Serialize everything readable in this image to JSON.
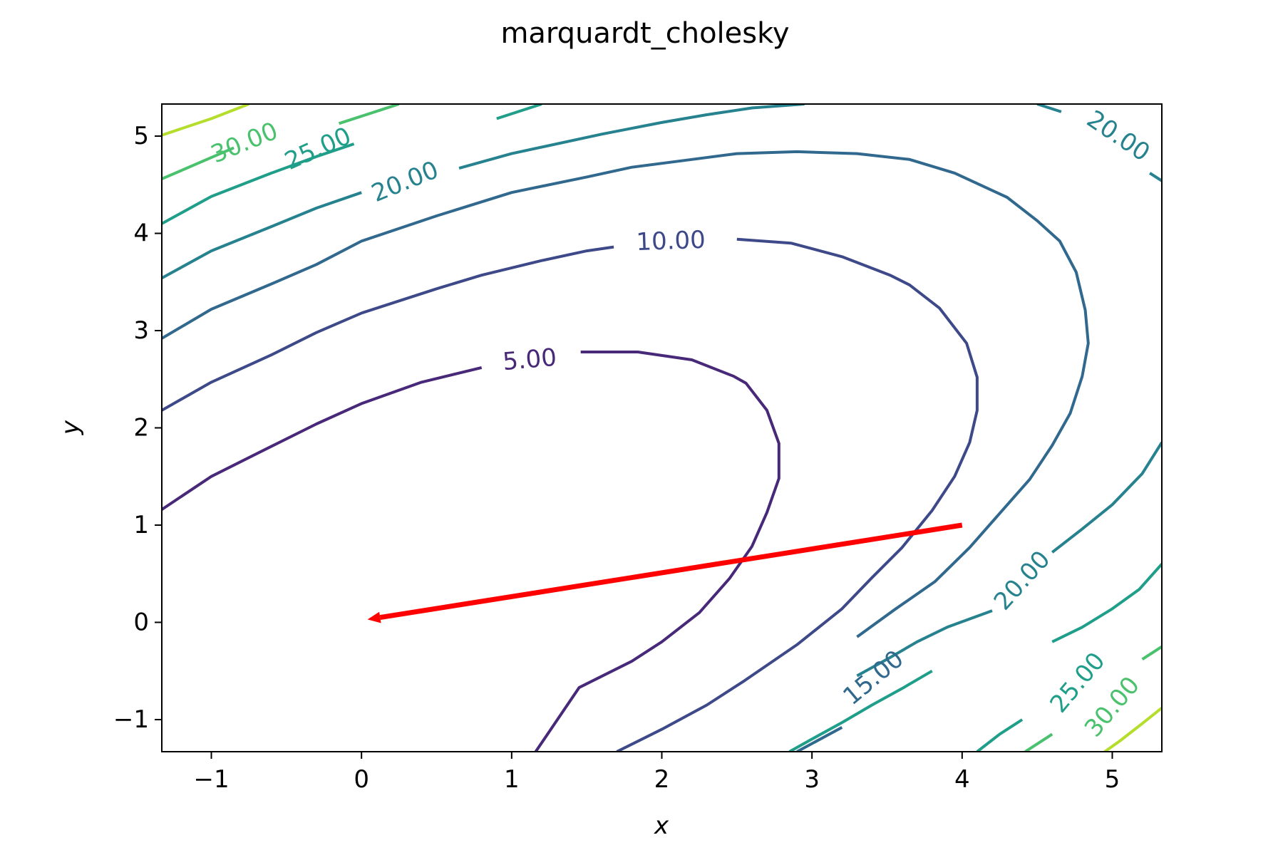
{
  "chart_data": {
    "type": "contour",
    "title": "marquardt_cholesky",
    "xlabel": "x",
    "ylabel": "y",
    "xlim": [
      -1.33,
      5.33
    ],
    "ylim": [
      -1.33,
      5.33
    ],
    "x_ticks": [
      -1,
      0,
      1,
      2,
      3,
      4,
      5
    ],
    "y_ticks": [
      -1,
      0,
      1,
      2,
      3,
      4,
      5
    ],
    "x_tick_labels": [
      "−1",
      "0",
      "1",
      "2",
      "3",
      "4",
      "5"
    ],
    "y_tick_labels": [
      "−1",
      "0",
      "1",
      "2",
      "3",
      "4",
      "5"
    ],
    "grid": false,
    "contours": [
      {
        "level": 5,
        "label": "5.00",
        "color": "#482878",
        "lines": [
          [
            [
              -1.33,
              1.16
            ],
            [
              -1.0,
              1.5
            ],
            [
              -0.6,
              1.81
            ],
            [
              -0.3,
              2.04
            ],
            [
              0.0,
              2.25
            ],
            [
              0.4,
              2.47
            ],
            [
              0.8,
              2.62
            ]
          ],
          [
            [
              1.46,
              2.78
            ],
            [
              1.84,
              2.78
            ],
            [
              2.2,
              2.7
            ],
            [
              2.48,
              2.53
            ],
            [
              2.56,
              2.46
            ],
            [
              2.7,
              2.18
            ],
            [
              2.78,
              1.84
            ],
            [
              2.78,
              1.48
            ],
            [
              2.7,
              1.13
            ],
            [
              2.6,
              0.78
            ],
            [
              2.45,
              0.45
            ],
            [
              2.25,
              0.1
            ],
            [
              2.0,
              -0.2
            ],
            [
              1.8,
              -0.4
            ],
            [
              1.45,
              -0.67
            ],
            [
              1.16,
              -1.33
            ]
          ]
        ]
      },
      {
        "level": 10,
        "label": "10.00",
        "color": "#3e4989",
        "lines": [
          [
            [
              -1.33,
              2.18
            ],
            [
              -1.0,
              2.47
            ],
            [
              -0.6,
              2.75
            ],
            [
              -0.3,
              2.98
            ],
            [
              0.0,
              3.18
            ],
            [
              0.5,
              3.43
            ],
            [
              0.8,
              3.57
            ],
            [
              1.2,
              3.72
            ],
            [
              1.5,
              3.82
            ],
            [
              1.68,
              3.86
            ]
          ],
          [
            [
              2.5,
              3.94
            ],
            [
              2.86,
              3.9
            ],
            [
              3.2,
              3.76
            ],
            [
              3.52,
              3.57
            ],
            [
              3.65,
              3.47
            ],
            [
              3.85,
              3.23
            ],
            [
              4.03,
              2.87
            ],
            [
              4.1,
              2.52
            ],
            [
              4.1,
              2.18
            ],
            [
              4.05,
              1.85
            ],
            [
              3.95,
              1.5
            ],
            [
              3.8,
              1.15
            ],
            [
              3.6,
              0.77
            ],
            [
              3.4,
              0.46
            ],
            [
              3.2,
              0.14
            ],
            [
              2.9,
              -0.23
            ],
            [
              2.55,
              -0.6
            ],
            [
              2.3,
              -0.85
            ],
            [
              2.0,
              -1.1
            ],
            [
              1.7,
              -1.33
            ]
          ]
        ]
      },
      {
        "level": 15,
        "label": "15.00",
        "color": "#31688e",
        "lines": [
          [
            [
              -1.33,
              2.92
            ],
            [
              -1.0,
              3.22
            ],
            [
              -0.6,
              3.48
            ],
            [
              -0.3,
              3.68
            ],
            [
              0.0,
              3.92
            ],
            [
              0.5,
              4.18
            ],
            [
              1.0,
              4.42
            ],
            [
              1.5,
              4.58
            ],
            [
              1.8,
              4.68
            ],
            [
              2.2,
              4.76
            ],
            [
              2.5,
              4.82
            ],
            [
              2.9,
              4.84
            ],
            [
              3.3,
              4.82
            ],
            [
              3.65,
              4.76
            ],
            [
              3.95,
              4.62
            ],
            [
              4.3,
              4.37
            ],
            [
              4.5,
              4.13
            ],
            [
              4.65,
              3.92
            ],
            [
              4.76,
              3.6
            ],
            [
              4.82,
              3.21
            ],
            [
              4.84,
              2.87
            ],
            [
              4.8,
              2.53
            ],
            [
              4.72,
              2.15
            ],
            [
              4.6,
              1.82
            ],
            [
              4.45,
              1.47
            ],
            [
              4.25,
              1.12
            ],
            [
              4.05,
              0.77
            ],
            [
              3.82,
              0.42
            ],
            [
              3.55,
              0.13
            ],
            [
              3.3,
              -0.15
            ]
          ],
          [
            [
              2.9,
              -1.33
            ],
            [
              3.2,
              -1.08
            ]
          ]
        ]
      },
      {
        "level": 20,
        "label": "20.00",
        "color": "#26828e",
        "lines": [
          [
            [
              -1.33,
              3.54
            ],
            [
              -1.0,
              3.82
            ],
            [
              -0.6,
              4.07
            ],
            [
              -0.3,
              4.26
            ],
            [
              0.0,
              4.42
            ]
          ],
          [
            [
              0.65,
              4.67
            ],
            [
              1.0,
              4.82
            ],
            [
              1.6,
              5.02
            ],
            [
              2.0,
              5.14
            ],
            [
              2.3,
              5.22
            ],
            [
              2.6,
              5.29
            ],
            [
              2.95,
              5.33
            ]
          ],
          [
            [
              4.5,
              5.33
            ],
            [
              4.66,
              5.25
            ]
          ],
          [
            [
              5.25,
              4.62
            ],
            [
              5.33,
              4.54
            ]
          ],
          [
            [
              5.33,
              1.85
            ],
            [
              5.2,
              1.53
            ],
            [
              5.0,
              1.21
            ],
            [
              4.8,
              0.96
            ],
            [
              4.6,
              0.72
            ]
          ],
          [
            [
              4.2,
              0.12
            ],
            [
              3.9,
              -0.05
            ],
            [
              3.7,
              -0.2
            ],
            [
              3.5,
              -0.38
            ],
            [
              3.3,
              -0.55
            ]
          ]
        ]
      },
      {
        "level": 25,
        "label": "25.00",
        "color": "#1f9e89",
        "lines": [
          [
            [
              -1.33,
              4.1
            ],
            [
              -1.0,
              4.38
            ],
            [
              -0.6,
              4.62
            ],
            [
              -0.3,
              4.79
            ],
            [
              -0.05,
              4.92
            ]
          ],
          [
            [
              0.9,
              5.18
            ],
            [
              1.2,
              5.33
            ]
          ],
          [
            [
              5.33,
              0.6
            ],
            [
              5.18,
              0.34
            ],
            [
              5.0,
              0.14
            ],
            [
              4.8,
              -0.05
            ],
            [
              4.6,
              -0.2
            ]
          ],
          [
            [
              4.1,
              -1.33
            ],
            [
              4.25,
              -1.15
            ],
            [
              4.4,
              -1.0
            ]
          ],
          [
            [
              3.8,
              -0.5
            ],
            [
              3.6,
              -0.68
            ],
            [
              3.4,
              -0.85
            ],
            [
              3.2,
              -1.03
            ],
            [
              3.0,
              -1.2
            ],
            [
              2.85,
              -1.33
            ]
          ]
        ]
      },
      {
        "level": 30,
        "label": "30.00",
        "color": "#4ac16d",
        "lines": [
          [
            [
              -1.33,
              4.56
            ],
            [
              -1.0,
              4.78
            ],
            [
              -0.85,
              4.88
            ]
          ],
          [
            [
              -0.15,
              5.13
            ],
            [
              0.15,
              5.28
            ],
            [
              0.25,
              5.33
            ]
          ],
          [
            [
              5.33,
              -0.25
            ],
            [
              5.2,
              -0.38
            ]
          ],
          [
            [
              4.6,
              -1.15
            ],
            [
              4.5,
              -1.25
            ],
            [
              4.42,
              -1.33
            ]
          ]
        ]
      },
      {
        "level": 35,
        "label": "",
        "color": "#b4dd2c",
        "lines": [
          [
            [
              -1.33,
              5.01
            ],
            [
              -1.0,
              5.18
            ],
            [
              -0.75,
              5.33
            ]
          ],
          [
            [
              5.33,
              -0.88
            ],
            [
              5.2,
              -1.04
            ],
            [
              5.05,
              -1.22
            ],
            [
              4.95,
              -1.33
            ]
          ]
        ]
      }
    ],
    "contour_labels": [
      {
        "text": "5.00",
        "x": 1.12,
        "y": 2.7,
        "angle": -5,
        "color": "#482878"
      },
      {
        "text": "10.00",
        "x": 2.06,
        "y": 3.92,
        "angle": -2,
        "color": "#3e4989"
      },
      {
        "text": "15.00",
        "x": 3.41,
        "y": -0.57,
        "angle": -40,
        "color": "#31688e"
      },
      {
        "text": "20.00",
        "x": 0.29,
        "y": 4.53,
        "angle": -22,
        "color": "#26828e"
      },
      {
        "text": "20.00",
        "x": 5.04,
        "y": 5.0,
        "angle": 34,
        "color": "#26828e"
      },
      {
        "text": "20.00",
        "x": 4.4,
        "y": 0.43,
        "angle": -48,
        "color": "#26828e"
      },
      {
        "text": "25.00",
        "x": -0.29,
        "y": 4.87,
        "angle": -24,
        "color": "#1f9e89"
      },
      {
        "text": "25.00",
        "x": 4.77,
        "y": -0.62,
        "angle": -50,
        "color": "#1f9e89"
      },
      {
        "text": "30.00",
        "x": -0.78,
        "y": 4.93,
        "angle": -22,
        "color": "#4ac16d"
      },
      {
        "text": "30.00",
        "x": 5.0,
        "y": -0.87,
        "angle": -50,
        "color": "#4ac16d"
      }
    ],
    "arrow": {
      "color": "#ff0000",
      "from": [
        4.0,
        1.0
      ],
      "to": [
        0.04,
        0.03
      ]
    }
  }
}
